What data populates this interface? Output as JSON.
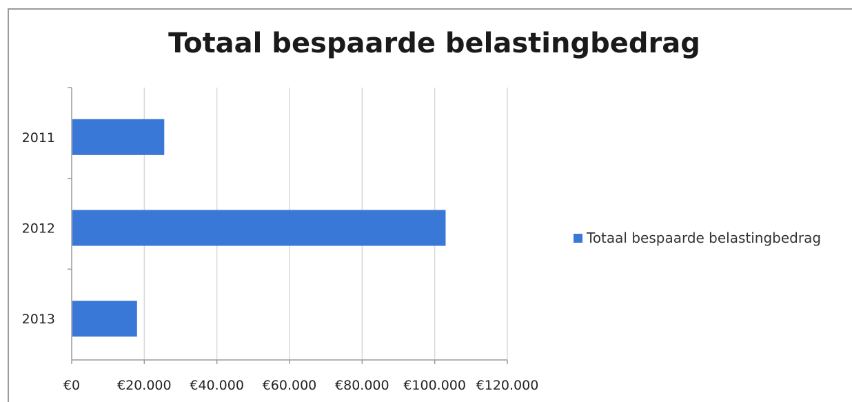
{
  "chart_data": {
    "type": "bar",
    "orientation": "horizontal",
    "title": "Totaal bespaarde belastingbedrag",
    "categories": [
      "2011",
      "2012",
      "2013"
    ],
    "series": [
      {
        "name": "Totaal bespaarde belastingbedrag",
        "values": [
          25500,
          103000,
          18000
        ]
      }
    ],
    "xlim": [
      0,
      120000
    ],
    "x_ticks": [
      0,
      20000,
      40000,
      60000,
      80000,
      100000,
      120000
    ],
    "x_tick_labels": [
      "€0",
      "€20.000",
      "€40.000",
      "€60.000",
      "€80.000",
      "€100.000",
      "€120.000"
    ],
    "xlabel": "",
    "ylabel": "",
    "grid": true,
    "legend_position": "right",
    "colors": {
      "bar": "#3a78d8",
      "grid": "#d9d9d9",
      "axis": "#9a9a9a"
    }
  }
}
